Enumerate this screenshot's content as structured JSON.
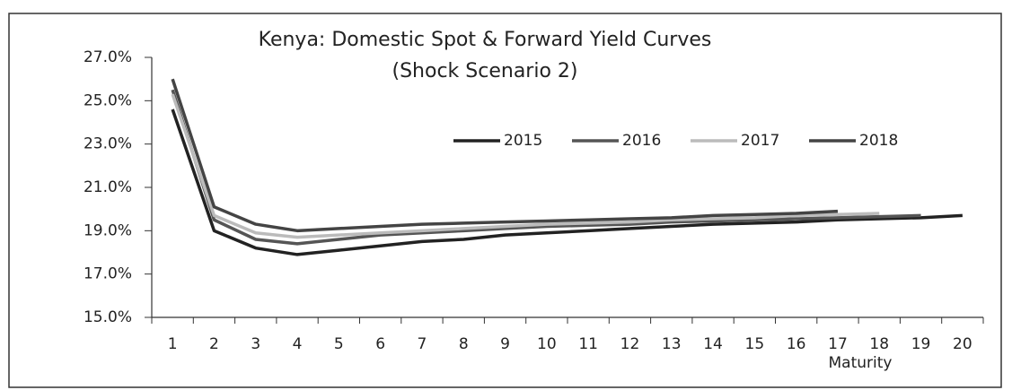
{
  "chart_data": {
    "type": "line",
    "title": "Kenya: Domestic  Spot & Forward Yield Curves",
    "subtitle": "(Shock Scenario 2)",
    "x_label": "Maturity",
    "categories": [
      "1",
      "2",
      "3",
      "4",
      "5",
      "6",
      "7",
      "8",
      "9",
      "10",
      "11",
      "12",
      "13",
      "14",
      "15",
      "16",
      "17",
      "18",
      "19",
      "20"
    ],
    "series": [
      {
        "name": "2015",
        "color": "#222222",
        "values": [
          24.6,
          19.0,
          18.2,
          17.9,
          18.1,
          18.3,
          18.5,
          18.6,
          18.8,
          18.9,
          19.0,
          19.1,
          19.2,
          19.3,
          19.35,
          19.4,
          19.5,
          19.55,
          19.6,
          19.7
        ]
      },
      {
        "name": "2016",
        "color": "#555555",
        "values": [
          25.5,
          19.5,
          18.6,
          18.4,
          18.6,
          18.8,
          18.9,
          19.0,
          19.1,
          19.2,
          19.25,
          19.3,
          19.4,
          19.45,
          19.5,
          19.55,
          19.6,
          19.65,
          19.7,
          null
        ]
      },
      {
        "name": "2017",
        "color": "#bbbbbb",
        "values": [
          25.3,
          19.7,
          18.9,
          18.7,
          18.8,
          18.9,
          19.0,
          19.1,
          19.2,
          19.3,
          19.35,
          19.4,
          19.5,
          19.55,
          19.6,
          19.7,
          19.75,
          19.8,
          null,
          null
        ]
      },
      {
        "name": "2018",
        "color": "#444444",
        "values": [
          26.0,
          20.1,
          19.3,
          19.0,
          19.1,
          19.2,
          19.3,
          19.35,
          19.4,
          19.45,
          19.5,
          19.55,
          19.6,
          19.7,
          19.75,
          19.8,
          19.9,
          null,
          null,
          null
        ]
      }
    ],
    "ylim": [
      15,
      27
    ],
    "yticks": [
      {
        "value": 15,
        "label": "15.0%"
      },
      {
        "value": 17,
        "label": "17.0%"
      },
      {
        "value": 19,
        "label": "19.0%"
      },
      {
        "value": 21,
        "label": "21.0%"
      },
      {
        "value": 23,
        "label": "23.0%"
      },
      {
        "value": 25,
        "label": "25.0%"
      },
      {
        "value": 27,
        "label": "27.0%"
      }
    ],
    "legend": "top-right"
  }
}
